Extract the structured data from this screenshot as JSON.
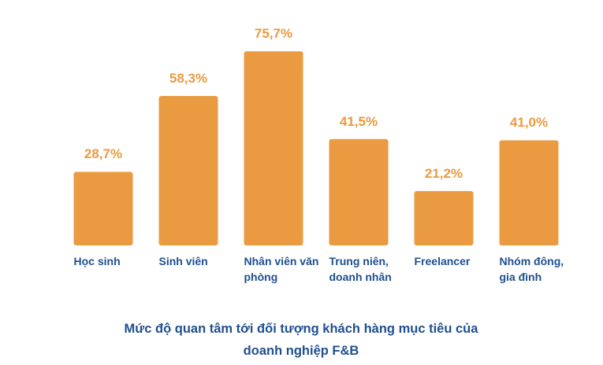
{
  "chart_data": {
    "type": "bar",
    "title": "Mức độ quan tâm tới đối tượng khách hàng mục tiêu của doanh nghiệp F&B",
    "categories": [
      "Học sinh",
      "Sinh viên",
      "Nhân viên văn phòng",
      "Trung niên, doanh nhân",
      "Freelancer",
      "Nhóm đông, gia đình"
    ],
    "values": [
      28.7,
      58.3,
      75.7,
      41.5,
      21.2,
      41.0
    ],
    "value_labels": [
      "28,7%",
      "58,3%",
      "75,7%",
      "41,5%",
      "21,2%",
      "41,0%"
    ],
    "color": "#ea9a40"
  }
}
